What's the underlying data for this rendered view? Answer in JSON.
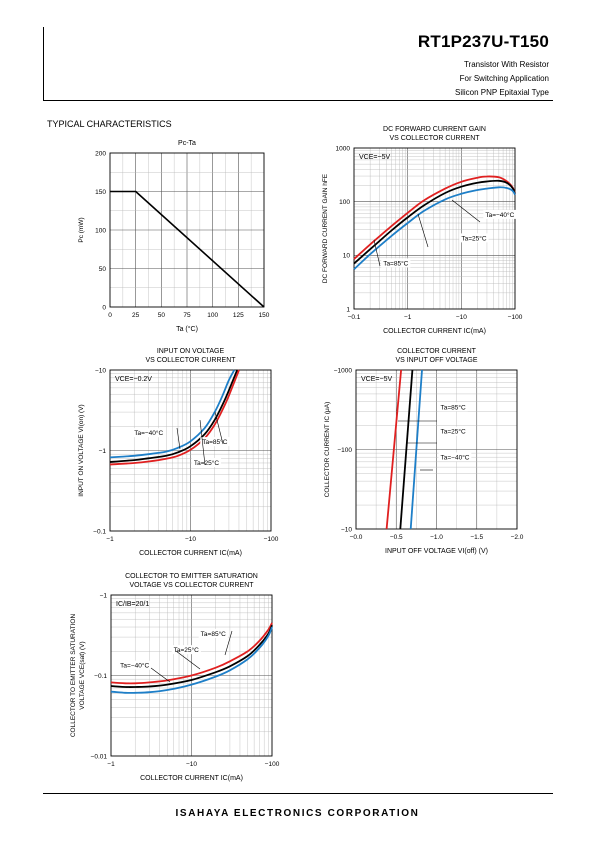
{
  "header": {
    "part_number": "RT1P237U-T150",
    "lines": [
      "Transistor With Resistor",
      "For Switching Application",
      "Silicon PNP Epitaxial Type"
    ]
  },
  "section_title": "TYPICAL CHARACTERISTICS",
  "footer": {
    "company": "ISAHAYA ELECTRONICS CORPORATION"
  },
  "chart_data": [
    {
      "id": "pc-ta",
      "type": "line",
      "title": [
        "Pc-Ta"
      ],
      "xlabel": "Ta (°C)",
      "ylabel": "Pc (mW)",
      "xscale": "linear",
      "yscale": "linear",
      "xlim": [
        0,
        150
      ],
      "ylim": [
        0,
        200
      ],
      "xticks": [
        0,
        25,
        50,
        75,
        100,
        125,
        150
      ],
      "xtick_labels": [
        "0",
        "25",
        "50",
        "75",
        "100",
        "125",
        "150"
      ],
      "yticks": [
        0,
        50,
        100,
        150,
        200
      ],
      "ytick_labels": [
        "0",
        "50",
        "100",
        "150",
        "200"
      ],
      "grid": true,
      "series": [
        {
          "color": "#000000",
          "x": [
            0,
            25,
            150
          ],
          "y": [
            150,
            150,
            0
          ]
        }
      ],
      "annotations": []
    },
    {
      "id": "hfe-ic",
      "type": "line",
      "title": [
        "DC FORWARD CURRENT GAIN",
        "VS COLLECTOR CURRENT"
      ],
      "xlabel": "COLLECTOR CURRENT  IC(mA)",
      "ylabel": "DC FORWARD CURRENT GAIN hFE",
      "xscale": "log",
      "yscale": "log",
      "xlim": [
        0.1,
        100
      ],
      "ylim": [
        1,
        1000
      ],
      "xticks": [
        0.1,
        1,
        10,
        100
      ],
      "xtick_labels": [
        "−0.1",
        "−1",
        "−10",
        "−100"
      ],
      "yticks": [
        1,
        10,
        100,
        1000
      ],
      "ytick_labels": [
        "1",
        "10",
        "100",
        "1000"
      ],
      "grid": true,
      "condition": "VCE=−5V",
      "series": [
        {
          "name": "Ta=85°C",
          "color": "#e02020",
          "x": [
            0.1,
            0.2,
            0.5,
            1,
            2,
            5,
            10,
            20,
            30,
            50,
            70,
            90,
            100
          ],
          "y": [
            8.5,
            16,
            35,
            62,
            105,
            175,
            235,
            280,
            295,
            285,
            240,
            185,
            140
          ]
        },
        {
          "name": "Ta=25°C",
          "color": "#000000",
          "x": [
            0.1,
            0.2,
            0.5,
            1,
            2,
            5,
            10,
            20,
            30,
            50,
            70,
            90,
            100
          ],
          "y": [
            7,
            13,
            29,
            51,
            85,
            145,
            190,
            225,
            238,
            245,
            225,
            180,
            140
          ]
        },
        {
          "name": "Ta=−40°C",
          "color": "#1e7fc8",
          "x": [
            0.1,
            0.2,
            0.5,
            1,
            2,
            5,
            10,
            20,
            30,
            50,
            70,
            90,
            100
          ],
          "y": [
            5.5,
            10.5,
            23,
            40,
            67,
            110,
            140,
            165,
            175,
            185,
            180,
            160,
            135
          ]
        }
      ],
      "annotations": [
        {
          "text": "Ta=−40°C",
          "x": 28,
          "y": 52
        },
        {
          "text": "Ta=25°C",
          "x": 10,
          "y": 19
        },
        {
          "text": "Ta=85°C",
          "x": 0.35,
          "y": 6.5
        }
      ]
    },
    {
      "id": "vion-ic",
      "type": "line",
      "title": [
        "INPUT ON VOLTAGE",
        "VS COLLECTOR CURRENT"
      ],
      "xlabel": "COLLECTOR CURRENT  IC(mA)",
      "ylabel": "INPUT ON VOLTAGE VI(on) (V)",
      "xscale": "log",
      "yscale": "log",
      "xlim": [
        1,
        100
      ],
      "ylim": [
        0.1,
        10
      ],
      "xticks": [
        1,
        10,
        100
      ],
      "xtick_labels": [
        "−1",
        "−10",
        "−100"
      ],
      "yticks": [
        0.1,
        1,
        10
      ],
      "ytick_labels": [
        "−0.1",
        "−1",
        "−10"
      ],
      "grid": true,
      "condition": "VCE=−0.2V",
      "series": [
        {
          "name": "Ta=−40°C",
          "color": "#1e7fc8",
          "x": [
            1,
            2,
            3,
            5,
            7,
            10,
            15,
            20,
            25,
            30,
            35
          ],
          "y": [
            0.82,
            0.86,
            0.9,
            0.97,
            1.08,
            1.3,
            1.9,
            3.0,
            4.8,
            7.5,
            10
          ]
        },
        {
          "name": "Ta=25°C",
          "color": "#000000",
          "x": [
            1,
            2,
            3,
            5,
            7,
            10,
            15,
            20,
            25,
            30,
            38
          ],
          "y": [
            0.72,
            0.76,
            0.8,
            0.86,
            0.95,
            1.13,
            1.6,
            2.4,
            3.7,
            5.6,
            10
          ]
        },
        {
          "name": "Ta=85°C",
          "color": "#e02020",
          "x": [
            1,
            2,
            3,
            5,
            7,
            10,
            15,
            20,
            25,
            30,
            40
          ],
          "y": [
            0.67,
            0.7,
            0.73,
            0.79,
            0.86,
            1.02,
            1.42,
            2.1,
            3.2,
            4.8,
            10
          ]
        }
      ],
      "annotations": [
        {
          "text": "Ta=−40°C",
          "x": 2.0,
          "y": 1.55
        },
        {
          "text": "Ta=85°C",
          "x": 14,
          "y": 1.2
        },
        {
          "text": "Ta=25°C",
          "x": 11,
          "y": 0.66
        }
      ]
    },
    {
      "id": "ic-vioff",
      "type": "line",
      "title": [
        "COLLECTOR CURRENT",
        "VS INPUT OFF VOLTAGE"
      ],
      "xlabel": "INPUT OFF VOLTAGE VI(off) (V)",
      "ylabel": "COLLECTOR CURRENT IC (μA)",
      "xscale": "linear",
      "yscale": "log",
      "xlim": [
        0,
        2.0
      ],
      "ylim": [
        10,
        1000
      ],
      "xticks": [
        0,
        0.5,
        1.0,
        1.5,
        2.0
      ],
      "xtick_labels": [
        "−0.0",
        "−0.5",
        "−1.0",
        "−1.5",
        "−2.0"
      ],
      "yticks": [
        10,
        100,
        1000
      ],
      "ytick_labels": [
        "−10",
        "−100",
        "−1000"
      ],
      "grid": true,
      "condition": "VCE=−5V",
      "series": [
        {
          "name": "Ta=85°C",
          "color": "#e02020",
          "x": [
            0.38,
            0.56
          ],
          "y": [
            10,
            1000
          ]
        },
        {
          "name": "Ta=25°C",
          "color": "#000000",
          "x": [
            0.55,
            0.7
          ],
          "y": [
            10,
            1000
          ]
        },
        {
          "name": "Ta=−40°C",
          "color": "#1e7fc8",
          "x": [
            0.68,
            0.82
          ],
          "y": [
            10,
            1000
          ]
        }
      ],
      "annotations": [
        {
          "text": "Ta=85°C",
          "x": 1.05,
          "y": 320
        },
        {
          "text": "Ta=25°C",
          "x": 1.05,
          "y": 158
        },
        {
          "text": "Ta=−40°C",
          "x": 1.05,
          "y": 75
        }
      ]
    },
    {
      "id": "vcesat-ic",
      "type": "line",
      "title": [
        "COLLECTOR TO EMITTER SATURATION",
        "VOLTAGE VS COLLECTOR CURRENT"
      ],
      "xlabel": "COLLECTOR CURRENT  IC(mA)",
      "ylabel": [
        "COLLECTOR TO EMITTER SATURATION",
        "VOLTAGE VCE(sat) (V)"
      ],
      "xscale": "log",
      "yscale": "log",
      "xlim": [
        1,
        100
      ],
      "ylim": [
        0.01,
        1
      ],
      "xticks": [
        1,
        10,
        100
      ],
      "xtick_labels": [
        "−1",
        "−10",
        "−100"
      ],
      "yticks": [
        0.01,
        0.1,
        1
      ],
      "ytick_labels": [
        "−0.01",
        "−0.1",
        "−1"
      ],
      "grid": true,
      "condition": "IC/IB=20/1",
      "series": [
        {
          "name": "Ta=85°C",
          "color": "#e02020",
          "x": [
            1,
            1.5,
            2,
            3,
            5,
            10,
            20,
            30,
            50,
            70,
            90,
            100
          ],
          "y": [
            0.082,
            0.08,
            0.08,
            0.082,
            0.087,
            0.1,
            0.125,
            0.15,
            0.2,
            0.27,
            0.37,
            0.45
          ]
        },
        {
          "name": "Ta=25°C",
          "color": "#000000",
          "x": [
            1,
            1.5,
            2,
            3,
            5,
            10,
            20,
            30,
            50,
            70,
            90,
            100
          ],
          "y": [
            0.074,
            0.072,
            0.072,
            0.073,
            0.077,
            0.088,
            0.11,
            0.13,
            0.175,
            0.24,
            0.33,
            0.42
          ]
        },
        {
          "name": "Ta=−40°C",
          "color": "#1e7fc8",
          "x": [
            1,
            1.5,
            2,
            3,
            5,
            10,
            20,
            30,
            50,
            70,
            90,
            100
          ],
          "y": [
            0.063,
            0.061,
            0.061,
            0.062,
            0.066,
            0.077,
            0.097,
            0.116,
            0.16,
            0.22,
            0.31,
            0.4
          ]
        }
      ],
      "annotations": [
        {
          "text": "Ta=85°C",
          "x": 13,
          "y": 0.31
        },
        {
          "text": "Ta=25°C",
          "x": 6,
          "y": 0.195
        },
        {
          "text": "Ta=−40°C",
          "x": 1.3,
          "y": 0.125
        }
      ]
    }
  ]
}
